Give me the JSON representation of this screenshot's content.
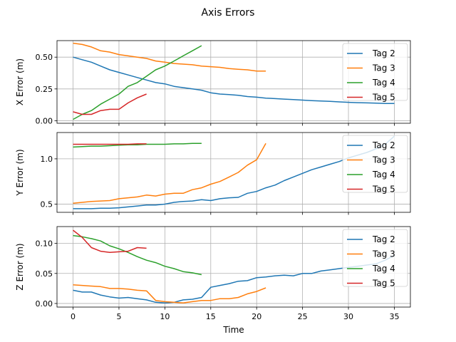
{
  "figure": {
    "title": "Axis Errors",
    "xlabel": "Time"
  },
  "chart_data": [
    {
      "type": "line",
      "ylabel": "X Error (m)",
      "xlim": [
        -1.75,
        36.75
      ],
      "ylim": [
        -0.02,
        0.63
      ],
      "xticks": [
        0,
        5,
        10,
        15,
        20,
        25,
        30,
        35
      ],
      "yticks": [
        0.0,
        0.25,
        0.5
      ],
      "ytick_labels": [
        "0.00",
        "0.25",
        "0.50"
      ],
      "grid": true,
      "legend": "upper right",
      "series": [
        {
          "name": "Tag 2",
          "color": "#1f77b4",
          "x": [
            0,
            1,
            2,
            3,
            4,
            5,
            6,
            7,
            8,
            9,
            10,
            11,
            12,
            13,
            14,
            15,
            16,
            17,
            18,
            19,
            20,
            21,
            22,
            23,
            24,
            25,
            26,
            27,
            28,
            29,
            30,
            31,
            32,
            33,
            34,
            35
          ],
          "y": [
            0.5,
            0.48,
            0.46,
            0.43,
            0.4,
            0.38,
            0.36,
            0.34,
            0.32,
            0.3,
            0.29,
            0.27,
            0.26,
            0.25,
            0.24,
            0.22,
            0.21,
            0.205,
            0.2,
            0.19,
            0.185,
            0.178,
            0.174,
            0.17,
            0.166,
            0.162,
            0.158,
            0.155,
            0.152,
            0.148,
            0.145,
            0.142,
            0.14,
            0.138,
            0.136,
            0.135
          ]
        },
        {
          "name": "Tag 3",
          "color": "#ff7f0e",
          "x": [
            0,
            1,
            2,
            3,
            4,
            5,
            6,
            7,
            8,
            9,
            10,
            11,
            12,
            13,
            14,
            15,
            16,
            17,
            18,
            19,
            20,
            21
          ],
          "y": [
            0.61,
            0.6,
            0.58,
            0.55,
            0.54,
            0.52,
            0.51,
            0.5,
            0.49,
            0.47,
            0.46,
            0.45,
            0.445,
            0.44,
            0.43,
            0.425,
            0.42,
            0.41,
            0.405,
            0.4,
            0.39,
            0.39
          ]
        },
        {
          "name": "Tag 4",
          "color": "#2ca02c",
          "x": [
            0,
            1,
            2,
            3,
            4,
            5,
            6,
            7,
            8,
            9,
            10,
            11,
            12,
            13,
            14
          ],
          "y": [
            0.01,
            0.05,
            0.08,
            0.13,
            0.17,
            0.21,
            0.27,
            0.3,
            0.35,
            0.4,
            0.43,
            0.47,
            0.51,
            0.55,
            0.59
          ]
        },
        {
          "name": "Tag 5",
          "color": "#d62728",
          "x": [
            0,
            1,
            2,
            3,
            4,
            5,
            6,
            7,
            8
          ],
          "y": [
            0.07,
            0.05,
            0.05,
            0.08,
            0.09,
            0.09,
            0.14,
            0.18,
            0.21
          ]
        }
      ]
    },
    {
      "type": "line",
      "ylabel": "Y Error (m)",
      "xlim": [
        -1.75,
        36.75
      ],
      "ylim": [
        0.41,
        1.29
      ],
      "xticks": [
        0,
        5,
        10,
        15,
        20,
        25,
        30,
        35
      ],
      "yticks": [
        0.5,
        1.0
      ],
      "ytick_labels": [
        "0.5",
        "1.0"
      ],
      "grid": true,
      "legend": "upper right",
      "series": [
        {
          "name": "Tag 2",
          "color": "#1f77b4",
          "x": [
            0,
            1,
            2,
            3,
            4,
            5,
            6,
            7,
            8,
            9,
            10,
            11,
            12,
            13,
            14,
            15,
            16,
            17,
            18,
            19,
            20,
            21,
            22,
            23,
            24,
            25,
            26,
            27,
            28,
            29,
            30,
            31,
            32,
            33,
            34,
            35
          ],
          "y": [
            0.45,
            0.45,
            0.45,
            0.455,
            0.455,
            0.46,
            0.47,
            0.48,
            0.49,
            0.49,
            0.5,
            0.52,
            0.53,
            0.535,
            0.55,
            0.54,
            0.56,
            0.57,
            0.575,
            0.62,
            0.64,
            0.68,
            0.71,
            0.76,
            0.8,
            0.84,
            0.88,
            0.91,
            0.94,
            0.97,
            1.01,
            1.04,
            1.07,
            1.11,
            1.16,
            1.25
          ]
        },
        {
          "name": "Tag 3",
          "color": "#ff7f0e",
          "x": [
            0,
            1,
            2,
            3,
            4,
            5,
            6,
            7,
            8,
            9,
            10,
            11,
            12,
            13,
            14,
            15,
            16,
            17,
            18,
            19,
            20,
            21
          ],
          "y": [
            0.51,
            0.52,
            0.53,
            0.535,
            0.54,
            0.56,
            0.57,
            0.58,
            0.6,
            0.59,
            0.61,
            0.62,
            0.62,
            0.66,
            0.68,
            0.72,
            0.75,
            0.8,
            0.85,
            0.93,
            0.99,
            1.17
          ]
        },
        {
          "name": "Tag 4",
          "color": "#2ca02c",
          "x": [
            0,
            1,
            2,
            3,
            4,
            5,
            6,
            7,
            8,
            9,
            10,
            11,
            12,
            13,
            14
          ],
          "y": [
            1.13,
            1.135,
            1.14,
            1.14,
            1.145,
            1.15,
            1.155,
            1.155,
            1.16,
            1.16,
            1.16,
            1.165,
            1.165,
            1.17,
            1.17
          ]
        },
        {
          "name": "Tag 5",
          "color": "#d62728",
          "x": [
            0,
            1,
            2,
            3,
            4,
            5,
            6,
            7,
            8
          ],
          "y": [
            1.16,
            1.16,
            1.16,
            1.16,
            1.16,
            1.16,
            1.16,
            1.165,
            1.165
          ]
        }
      ]
    },
    {
      "type": "line",
      "ylabel": "Z Error (m)",
      "xlim": [
        -1.75,
        36.75
      ],
      "ylim": [
        -0.006,
        0.128
      ],
      "xticks": [
        0,
        5,
        10,
        15,
        20,
        25,
        30,
        35
      ],
      "xtick_labels": [
        "0",
        "5",
        "10",
        "15",
        "20",
        "25",
        "30",
        "35"
      ],
      "yticks": [
        0.0,
        0.05,
        0.1
      ],
      "ytick_labels": [
        "0.00",
        "0.05",
        "0.10"
      ],
      "grid": true,
      "legend": "upper right",
      "series": [
        {
          "name": "Tag 2",
          "color": "#1f77b4",
          "x": [
            0,
            1,
            2,
            3,
            4,
            5,
            6,
            7,
            8,
            9,
            10,
            11,
            12,
            13,
            14,
            15,
            16,
            17,
            18,
            19,
            20,
            21,
            22,
            23,
            24,
            25,
            26,
            27,
            28,
            29,
            30,
            31,
            32,
            33,
            34,
            35
          ],
          "y": [
            0.022,
            0.019,
            0.019,
            0.014,
            0.011,
            0.009,
            0.01,
            0.008,
            0.006,
            0.002,
            0.001,
            0.002,
            0.006,
            0.007,
            0.01,
            0.027,
            0.03,
            0.033,
            0.037,
            0.038,
            0.043,
            0.044,
            0.046,
            0.047,
            0.046,
            0.05,
            0.05,
            0.054,
            0.056,
            0.058,
            0.06,
            0.062,
            0.064,
            0.066,
            0.072,
            0.08
          ]
        },
        {
          "name": "Tag 3",
          "color": "#ff7f0e",
          "x": [
            0,
            1,
            2,
            3,
            4,
            5,
            6,
            7,
            8,
            9,
            10,
            11,
            12,
            13,
            14,
            15,
            16,
            17,
            18,
            19,
            20,
            21
          ],
          "y": [
            0.031,
            0.03,
            0.029,
            0.028,
            0.025,
            0.025,
            0.024,
            0.022,
            0.021,
            0.005,
            0.003,
            0.002,
            0.001,
            0.003,
            0.005,
            0.005,
            0.008,
            0.008,
            0.01,
            0.016,
            0.02,
            0.026
          ]
        },
        {
          "name": "Tag 4",
          "color": "#2ca02c",
          "x": [
            0,
            1,
            2,
            3,
            4,
            5,
            6,
            7,
            8,
            9,
            10,
            11,
            12,
            13,
            14
          ],
          "y": [
            0.113,
            0.111,
            0.108,
            0.104,
            0.096,
            0.091,
            0.085,
            0.078,
            0.072,
            0.068,
            0.062,
            0.058,
            0.053,
            0.051,
            0.048
          ]
        },
        {
          "name": "Tag 5",
          "color": "#d62728",
          "x": [
            0,
            1,
            2,
            3,
            4,
            5,
            6,
            7,
            8
          ],
          "y": [
            0.122,
            0.11,
            0.093,
            0.087,
            0.085,
            0.086,
            0.087,
            0.093,
            0.092
          ]
        }
      ]
    }
  ]
}
